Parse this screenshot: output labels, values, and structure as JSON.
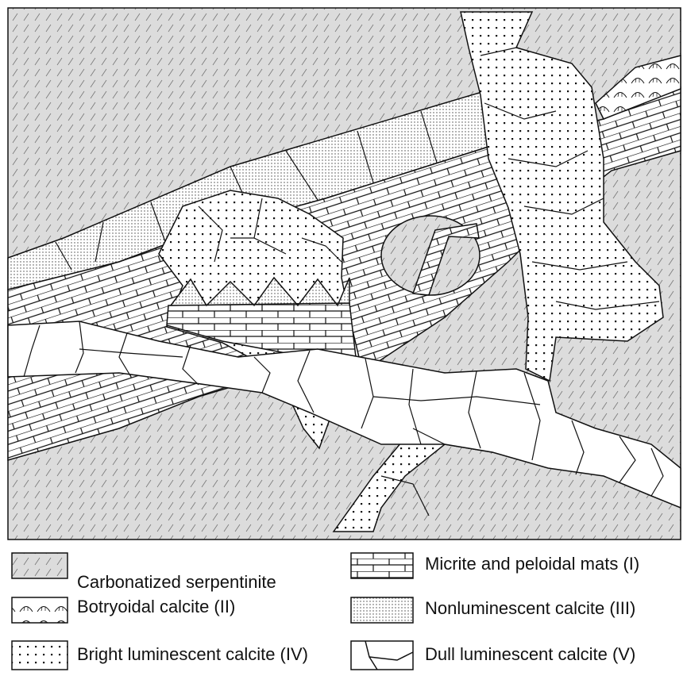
{
  "legend": [
    {
      "label": "Carbonatized serpentinite"
    },
    {
      "label": "Micrite and peloidal mats (I)"
    },
    {
      "label": "Botryoidal calcite (II)"
    },
    {
      "label": "Nonluminescent calcite (III)"
    },
    {
      "label": "Bright luminescent calcite (IV)"
    },
    {
      "label": "Dull luminescent calcite (V)"
    }
  ]
}
